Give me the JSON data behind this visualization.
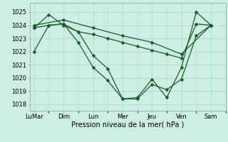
{
  "background_color": "#cceee4",
  "grid_color": "#aaddcc",
  "line_color": "#1a5c28",
  "xlabel": "Pression niveau de la mer( hPa )",
  "ylim": [
    1017.5,
    1025.7
  ],
  "yticks": [
    1018,
    1019,
    1020,
    1021,
    1022,
    1023,
    1024,
    1025
  ],
  "x_labels": [
    "LuMar",
    "Dim",
    "Lun",
    "Mer",
    "Jeu",
    "Ven",
    "Sam"
  ],
  "x_positions": [
    0,
    2,
    4,
    6,
    8,
    10,
    12
  ],
  "xlim": [
    -0.3,
    13.0
  ],
  "lines": [
    {
      "x": [
        0,
        2,
        4,
        6,
        8,
        10,
        12
      ],
      "y": [
        1024.0,
        1024.4,
        1023.8,
        1023.2,
        1022.7,
        1021.8,
        1024.0
      ]
    },
    {
      "x": [
        0,
        1,
        2,
        3,
        4,
        5,
        6,
        7,
        8,
        9,
        10,
        11,
        12
      ],
      "y": [
        1023.8,
        1024.8,
        1024.0,
        1023.5,
        1023.3,
        1023.0,
        1022.7,
        1022.4,
        1022.1,
        1021.8,
        1021.5,
        1024.1,
        1024.0
      ]
    },
    {
      "x": [
        0,
        1,
        2,
        3,
        4,
        5,
        6,
        7,
        8,
        9,
        10,
        11,
        12
      ],
      "y": [
        1022.0,
        1024.0,
        1024.1,
        1023.5,
        1021.7,
        1020.7,
        1018.4,
        1018.4,
        1019.5,
        1019.1,
        1019.9,
        1023.2,
        1024.0
      ]
    },
    {
      "x": [
        0,
        1,
        2,
        3,
        4,
        5,
        6,
        7,
        8,
        9,
        10,
        11,
        12
      ],
      "y": [
        1023.8,
        1024.0,
        1024.1,
        1022.7,
        1020.8,
        1019.8,
        1018.4,
        1018.5,
        1019.9,
        1018.5,
        1020.8,
        1025.0,
        1024.0
      ]
    }
  ],
  "marker": "D",
  "markersize": 2.5,
  "linewidth": 0.9,
  "tick_fontsize": 6,
  "xlabel_fontsize": 7
}
